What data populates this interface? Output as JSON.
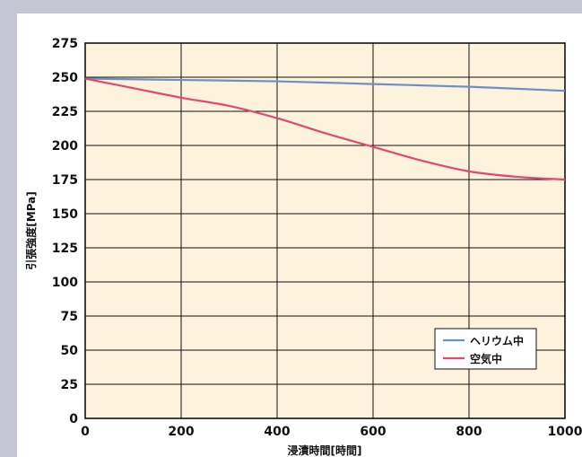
{
  "chart_data": {
    "type": "line",
    "xlabel": "浸漬時間[時間]",
    "ylabel": "引張強度[MPa]",
    "xlim": [
      0,
      1000
    ],
    "ylim": [
      0,
      275
    ],
    "xticks": [
      0,
      200,
      400,
      600,
      800,
      1000
    ],
    "yticks": [
      0,
      25,
      50,
      75,
      100,
      125,
      150,
      175,
      200,
      225,
      250,
      275
    ],
    "grid": true,
    "legend_position": "bottom-right",
    "colors": {
      "plot_background": "#fdf3dc",
      "page_background": "#c4c7d3"
    },
    "series": [
      {
        "name": "ヘリウム中",
        "color": "#6b8fc8",
        "x": [
          0,
          200,
          400,
          600,
          800,
          1000
        ],
        "y": [
          249,
          248,
          247,
          245,
          243,
          240
        ]
      },
      {
        "name": "空気中",
        "color": "#e04a6e",
        "x": [
          0,
          100,
          200,
          300,
          400,
          500,
          600,
          700,
          800,
          900,
          1000
        ],
        "y": [
          249,
          242,
          235,
          229,
          220,
          209,
          199,
          189,
          181,
          177,
          175
        ]
      }
    ]
  }
}
